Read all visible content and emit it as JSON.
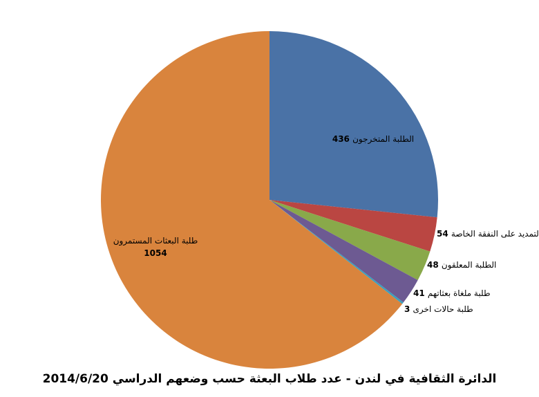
{
  "chart_data": {
    "type": "pie",
    "title": "الدائرة الثقافية في لندن - عدد طلاب البعثة حسب وضعهم الدراسي 2014/6/20",
    "slices": [
      {
        "label": "الطلبة المتخرجون",
        "value": 436,
        "color": "#4a72a6"
      },
      {
        "label": "التمديد على النفقة الخاصة",
        "value": 54,
        "color": "#ba4642"
      },
      {
        "label": "الطلبة المعلقون",
        "value": 48,
        "color": "#89a94a"
      },
      {
        "label": "طلبة ملغاة بعثاتهم",
        "value": 41,
        "color": "#6d5a92"
      },
      {
        "label": "طلبة حالات اخرى",
        "value": 3,
        "color": "#3c9fbd"
      },
      {
        "label": "طلبة البعثات المستمرون",
        "value": 1054,
        "color": "#d9843d"
      }
    ],
    "start_angle": "12 o'clock",
    "direction": "clockwise",
    "legend": "none"
  }
}
